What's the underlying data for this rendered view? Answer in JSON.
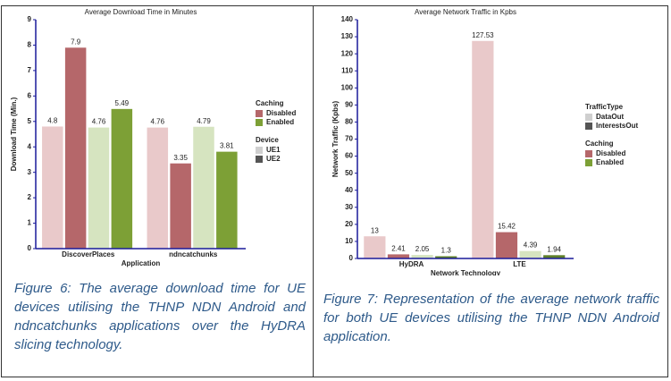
{
  "chart_data": [
    {
      "type": "bar",
      "title": "Average Download Time in Minutes",
      "x_label": "Application",
      "y_label": "Download Time (Min.)",
      "categories": [
        "DiscoverPlaces",
        "ndncatchunks"
      ],
      "series": [
        {
          "color": "#e9c9ca",
          "values": [
            4.8,
            4.76
          ]
        },
        {
          "color": "#b5676a",
          "values": [
            7.9,
            3.35
          ]
        },
        {
          "color": "#d6e4c0",
          "values": [
            4.76,
            4.79
          ]
        },
        {
          "color": "#7da036",
          "values": [
            5.49,
            3.81
          ]
        }
      ],
      "ylim": [
        0,
        9
      ],
      "yticks": [
        0,
        1,
        2,
        3,
        4,
        5,
        6,
        7,
        8,
        9
      ],
      "legend": [
        {
          "title": "Caching",
          "items": [
            {
              "name": "Disabled",
              "color": "#b5676a"
            },
            {
              "name": "Enabled",
              "color": "#7da036"
            }
          ]
        },
        {
          "title": "Device",
          "items": [
            {
              "name": "UE1",
              "color": "#cfcfcf"
            },
            {
              "name": "UE2",
              "color": "#555555"
            }
          ]
        }
      ]
    },
    {
      "type": "bar",
      "title": "Average Network Traffic in Kpbs",
      "x_label": "Network Technology",
      "y_label": "Network Traffic (Kpbs)",
      "categories": [
        "HyDRA",
        "LTE"
      ],
      "series": [
        {
          "color": "#e9c9ca",
          "values": [
            13,
            127.53
          ]
        },
        {
          "color": "#b5676a",
          "values": [
            2.41,
            15.42
          ]
        },
        {
          "color": "#d6e4c0",
          "values": [
            2.05,
            4.39
          ]
        },
        {
          "color": "#5f7f2a",
          "values": [
            1.3,
            1.94
          ]
        }
      ],
      "ylim": [
        0,
        140
      ],
      "yticks": [
        0,
        10,
        20,
        30,
        40,
        50,
        60,
        70,
        80,
        90,
        100,
        110,
        120,
        130,
        140
      ],
      "legend": [
        {
          "title": "TrafficType",
          "items": [
            {
              "name": "DataOut",
              "color": "#cfcfcf"
            },
            {
              "name": "InterestsOut",
              "color": "#555555"
            }
          ]
        },
        {
          "title": "Caching",
          "items": [
            {
              "name": "Disabled",
              "color": "#b5676a"
            },
            {
              "name": "Enabled",
              "color": "#7da036"
            }
          ]
        }
      ]
    }
  ],
  "captions": [
    "Figure 6: The average download time for UE devices utilising the THNP NDN Android and ndncatchunks applications over the HyDRA slicing technology.",
    "Figure 7: Representation of the average network traffic for both UE devices utilising the THNP NDN Android application."
  ]
}
